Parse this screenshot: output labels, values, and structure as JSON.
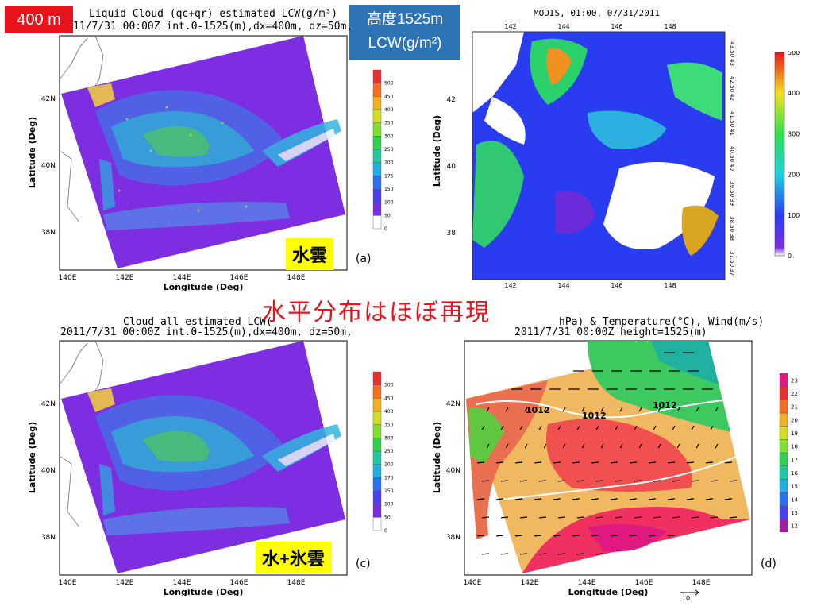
{
  "badges": {
    "height": "400 m",
    "alt_line1": "高度1525m",
    "alt_line2": "LCW(g/m²)"
  },
  "caption": "水平分布はほぼ再現",
  "panels": {
    "a": {
      "title1": "Liquid Cloud (qc+qr) estimated LCW(g/m³)",
      "title2": "11/7/31 00:00Z int.0-1525(m),dx=400m, dz=50m,",
      "label": "水雲",
      "tag": "(a)"
    },
    "b": {
      "title": "MODIS, 01:00, 07/31/2011"
    },
    "c": {
      "title1": "Cloud all estimated LCW(",
      "title2": "2011/7/31 00:00Z int.0-1525(m),dx=400m, dz=50m,",
      "label": "水+氷雲",
      "tag": "(c)"
    },
    "d": {
      "title1": "hPa) & Temperature(°C), Wind(m/s)",
      "title2": "2011/7/31 00:00Z height=1525(m)",
      "tag": "(d)",
      "vector_ref": "10"
    }
  },
  "axes": {
    "xlabel": "Longitude (Deg)",
    "ylabel": "Latitude (Deg)",
    "lon_ticks": [
      "140E",
      "142E",
      "144E",
      "146E",
      "148E"
    ],
    "lat_ticks": [
      "38N",
      "40N",
      "42N"
    ]
  },
  "modis_axes": {
    "top_ticks": [
      "142",
      "144",
      "146",
      "148"
    ],
    "left_ticks": [
      "38",
      "40",
      "42"
    ],
    "bottom_ticks": [
      "142",
      "144",
      "146",
      "148"
    ],
    "right_ticks": [
      "43.50",
      "43",
      "42.50",
      "42",
      "41.50",
      "41",
      "40.50",
      "40",
      "39.50",
      "39",
      "38.50",
      "38",
      "37.50",
      "37"
    ]
  },
  "colors": {
    "background_cloud": "#7d2ee0",
    "badge_red": "#e8141c",
    "badge_blue": "#2e74b5",
    "label_yellow": "#ffff00"
  },
  "chart_data": [
    {
      "type": "heatmap",
      "name": "Liquid Cloud (qc+qr) estimated LCW",
      "xlabel": "Longitude (Deg)",
      "ylabel": "Latitude (Deg)",
      "xlim": [
        139.5,
        149.7
      ],
      "ylim": [
        36.9,
        43.9
      ],
      "x_ticks": [
        "140E",
        "142E",
        "144E",
        "146E",
        "148E"
      ],
      "y_ticks": [
        "38N",
        "40N",
        "42N"
      ],
      "colorbar": [
        0,
        50,
        100,
        150,
        175,
        200,
        250,
        300,
        350,
        400,
        450,
        500
      ],
      "units": "g/m³"
    },
    {
      "type": "heatmap",
      "name": "MODIS, 01:00, 07/31/2011",
      "colorbar": [
        0,
        100,
        200,
        300,
        400,
        500
      ],
      "x_ticks": [
        "142",
        "144",
        "146",
        "148"
      ],
      "y_ticks": [
        "38",
        "40",
        "42"
      ]
    },
    {
      "type": "heatmap",
      "name": "Cloud all estimated LCW",
      "xlabel": "Longitude (Deg)",
      "ylabel": "Latitude (Deg)",
      "xlim": [
        139.5,
        149.7
      ],
      "ylim": [
        36.9,
        43.9
      ],
      "x_ticks": [
        "140E",
        "142E",
        "144E",
        "146E",
        "148E"
      ],
      "y_ticks": [
        "38N",
        "40N",
        "42N"
      ],
      "colorbar": [
        0,
        50,
        100,
        150,
        175,
        200,
        250,
        300,
        350,
        400,
        450,
        500
      ]
    },
    {
      "type": "heatmap",
      "name": "Pressure, Temperature, Wind",
      "xlabel": "Longitude (Deg)",
      "ylabel": "Latitude (Deg)",
      "x_ticks": [
        "140E",
        "142E",
        "144E",
        "146E",
        "148E"
      ],
      "y_ticks": [
        "38N",
        "40N",
        "42N"
      ],
      "colorbar": [
        12,
        13,
        14,
        15,
        16,
        17,
        18,
        19,
        20,
        21,
        22,
        23
      ],
      "contours": [
        "1012",
        "1012",
        "1012"
      ]
    }
  ]
}
